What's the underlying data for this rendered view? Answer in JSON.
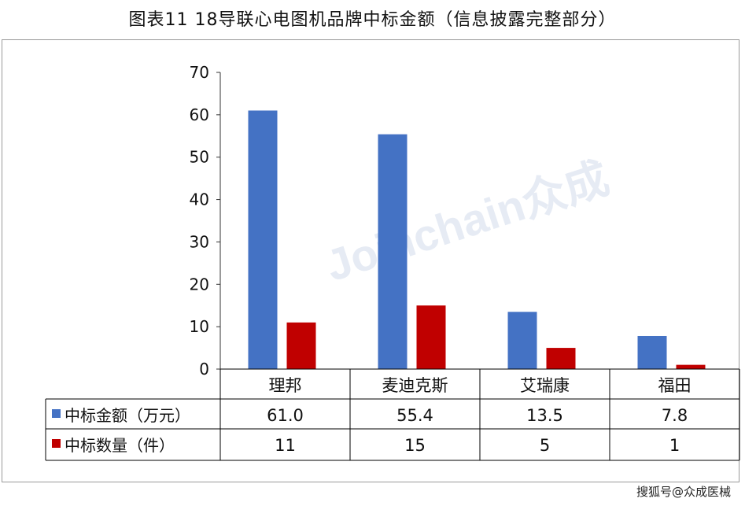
{
  "title": "图表11  18导联心电图机品牌中标金额（信息披露完整部分）",
  "watermark": "搜狐号@众成医械",
  "bg_watermark": "Joinchain众成",
  "chart_data": {
    "type": "bar",
    "title": "图表11  18导联心电图机品牌中标金额（信息披露完整部分）",
    "categories": [
      "理邦",
      "麦迪克斯",
      "艾瑞康",
      "福田"
    ],
    "series": [
      {
        "name": "中标金额（万元）",
        "color": "#4472C4",
        "values": [
          61.0,
          55.4,
          13.5,
          7.8
        ],
        "labels": [
          "61.0",
          "55.4",
          "13.5",
          "7.8"
        ]
      },
      {
        "name": "中标数量（件）",
        "color": "#C00000",
        "values": [
          11,
          15,
          5,
          1
        ],
        "labels": [
          "11",
          "15",
          "5",
          "1"
        ]
      }
    ],
    "ylim": [
      0,
      70
    ],
    "yticks": [
      0,
      10,
      20,
      30,
      40,
      50,
      60,
      70
    ],
    "legend": "data-table",
    "grid": false
  }
}
